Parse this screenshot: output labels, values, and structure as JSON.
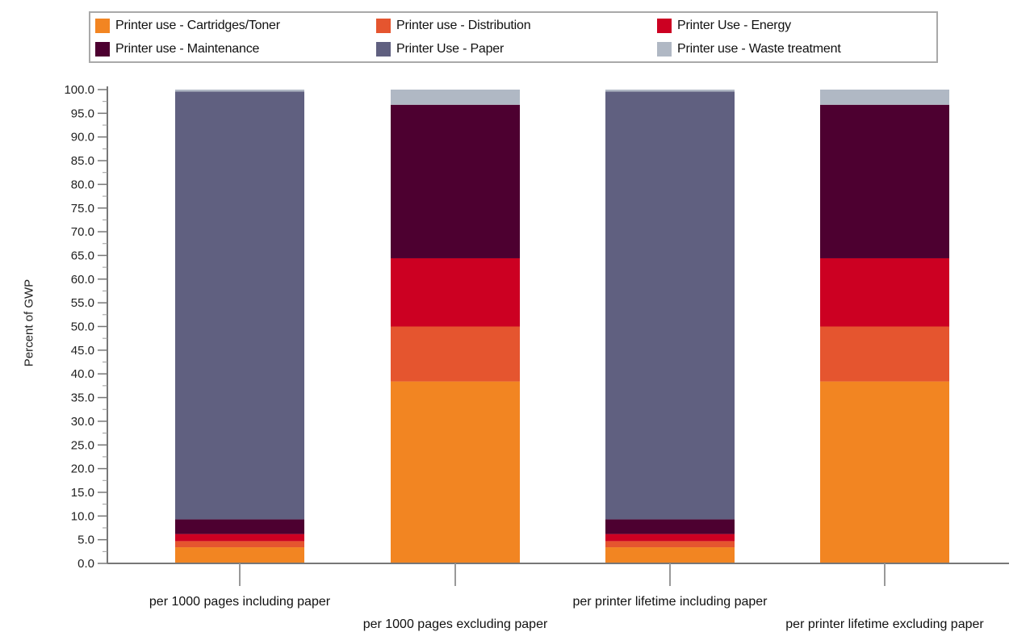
{
  "chart_data": {
    "type": "bar",
    "stacked": true,
    "percent_stacked": true,
    "categories": [
      "per 1000 pages including paper",
      "per 1000 pages excluding paper",
      "per printer lifetime including paper",
      "per printer lifetime excluding paper"
    ],
    "series": [
      {
        "name": "Printer use - Cartridges/Toner",
        "color": "#f28522",
        "values": [
          3.4,
          38.4,
          3.4,
          38.4
        ]
      },
      {
        "name": "Printer use - Distribution",
        "color": "#e5552f",
        "values": [
          1.3,
          11.6,
          1.3,
          11.6
        ]
      },
      {
        "name": "Printer Use - Energy",
        "color": "#cc0022",
        "values": [
          1.5,
          14.4,
          1.5,
          14.4
        ]
      },
      {
        "name": "Printer use - Maintenance",
        "color": "#4d0030",
        "values": [
          3.1,
          32.4,
          3.1,
          32.4
        ]
      },
      {
        "name": "Printer Use - Paper",
        "color": "#606080",
        "values": [
          90.3,
          0.0,
          90.3,
          0.0
        ]
      },
      {
        "name": "Printer use - Waste treatment",
        "color": "#b0b8c4",
        "values": [
          0.4,
          3.2,
          0.4,
          3.2
        ]
      }
    ],
    "ylabel": "Percent of GWP",
    "xlabel": "",
    "ylim": [
      0,
      100
    ],
    "yticks": [
      "0.0",
      "5.0",
      "10.0",
      "15.0",
      "20.0",
      "25.0",
      "30.0",
      "35.0",
      "40.0",
      "45.0",
      "50.0",
      "55.0",
      "60.0",
      "65.0",
      "70.0",
      "75.0",
      "80.0",
      "85.0",
      "90.0",
      "95.0",
      "100.0"
    ],
    "legend_position": "top",
    "grid": false
  }
}
